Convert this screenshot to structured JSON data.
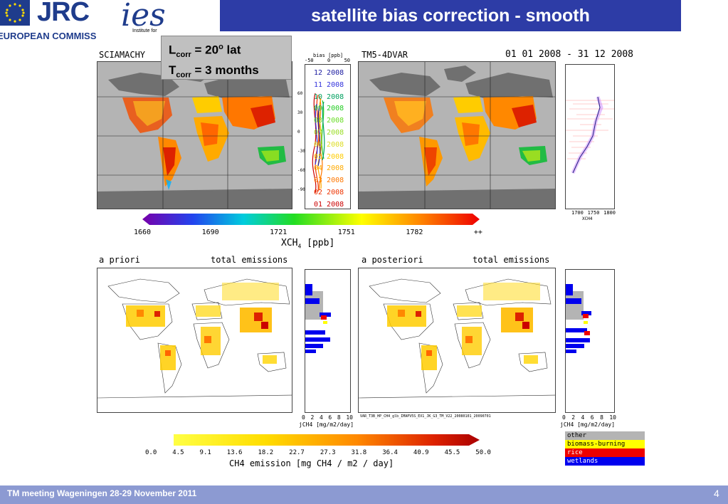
{
  "header": {
    "title": "satellite bias correction - smooth",
    "jrc_logo_text": "JRC",
    "ec_logo_text": "EUROPEAN COMMISSIO",
    "ies_logo_text": "ies",
    "ies_logo_sub": "Institute for"
  },
  "settings_box": {
    "l_prefix": "L",
    "l_sub": "corr",
    "l_value": " = 20",
    "l_sup": "o",
    "l_suffix": " lat",
    "t_prefix": "T",
    "t_sub": "corr",
    "t_value": " = 3 months"
  },
  "top_panels": {
    "left_title": "SCIAMACHY",
    "right_title": "TM5-4DVAR",
    "date_range": "01 01 2008 - 31 12 2008",
    "bias_axis_label": "bias [ppb]",
    "bias_ticks": [
      "-50",
      "0",
      "50"
    ],
    "lat_ticks": [
      "60",
      "30",
      "0",
      "-30",
      "-60",
      "-90"
    ],
    "months": [
      {
        "label": "12 2008",
        "color": "#1a1aa0"
      },
      {
        "label": "11 2008",
        "color": "#3333dd"
      },
      {
        "label": "10 2008",
        "color": "#00a060"
      },
      {
        "label": "09 2008",
        "color": "#22cc22"
      },
      {
        "label": "08 2008",
        "color": "#66dd22"
      },
      {
        "label": "07 2008",
        "color": "#99dd22"
      },
      {
        "label": "06 2008",
        "color": "#dddd22"
      },
      {
        "label": "05 2008",
        "color": "#ffcc00"
      },
      {
        "label": "04 2008",
        "color": "#ffaa00"
      },
      {
        "label": "03 2008",
        "color": "#ff7700"
      },
      {
        "label": "02 2008",
        "color": "#ee3300"
      },
      {
        "label": "01 2008",
        "color": "#cc0000"
      }
    ],
    "profile_ticks": [
      "1700",
      "1750",
      "1800"
    ],
    "profile_xlabel": "XCH4"
  },
  "xch4_colorbar": {
    "ticks": [
      "1660",
      "1690",
      "1721",
      "1751",
      "1782",
      "++"
    ],
    "label_main": "XCH",
    "label_sub": "4",
    "label_unit": " [ppb]"
  },
  "bottom_panels": {
    "left_title": "a priori",
    "left_subtitle": "total emissions",
    "right_title": "a posteriori",
    "right_subtitle": "total emissions",
    "flux_ticks": [
      "0",
      "2",
      "4",
      "6",
      "8",
      "10"
    ],
    "flux_label": "jCH4 [mg/m2/day]",
    "run_id": "VAR_T3B_HP_CH4_glb_IMAPV5S_EX1_JK_G3_TM_V22_20080101_20090701"
  },
  "legend": {
    "items": [
      {
        "label": "other",
        "color": "#b4b4b4"
      },
      {
        "label": "biomass-burning",
        "color": "#ffff00"
      },
      {
        "label": "rice",
        "color": "#ee0000"
      },
      {
        "label": "wetlands",
        "color": "#0000ee"
      }
    ]
  },
  "emission_colorbar": {
    "ticks": [
      "0.0",
      "4.5",
      "9.1",
      "13.6",
      "18.2",
      "22.7",
      "27.3",
      "31.8",
      "36.4",
      "40.9",
      "45.5",
      "50.0"
    ],
    "label": "CH4 emission [mg CH4 / m2 / day]"
  },
  "footer": {
    "text": "TM meeting Wageningen 28-29 November 2011",
    "page": "4"
  },
  "colors": {
    "title_bar": "#2d3ca6",
    "footer": "#8c9ad2",
    "brand": "#1f3c8c"
  }
}
